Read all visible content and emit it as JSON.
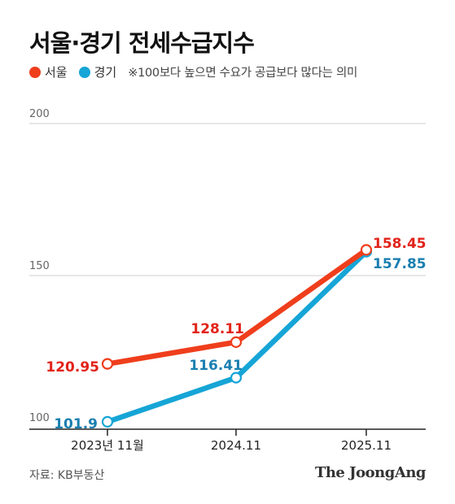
{
  "title": "서울·경기 전세수급지수",
  "legend": {
    "note": "※100보다 높으면 수요가 공급보다 많다는 의미"
  },
  "colors": {
    "seoul": "#ef3e1c",
    "gyeonggi": "#16a5d6",
    "seoul_label": "#e2231a",
    "gyeonggi_label": "#1a7fb0",
    "grid": "#cfcfcf",
    "axis": "#222222"
  },
  "chart_data": {
    "type": "line",
    "title": "서울·경기 전세수급지수",
    "categories": [
      "2023년 11월",
      "2024.11",
      "2025.11"
    ],
    "y_ticks": [
      "200",
      "150",
      "100"
    ],
    "ylim": [
      100,
      200
    ],
    "grid": true,
    "legend_position": "top-left",
    "series": [
      {
        "name": "서울",
        "values": [
          120.95,
          128.11,
          158.45
        ],
        "labels": [
          "120.95",
          "128.11",
          "158.45"
        ]
      },
      {
        "name": "경기",
        "values": [
          101.9,
          116.41,
          157.85
        ],
        "labels": [
          "101.9",
          "116.41",
          "157.85"
        ]
      }
    ]
  },
  "footer": {
    "source": "자료: KB부동산",
    "brand": "The JoongAng"
  }
}
